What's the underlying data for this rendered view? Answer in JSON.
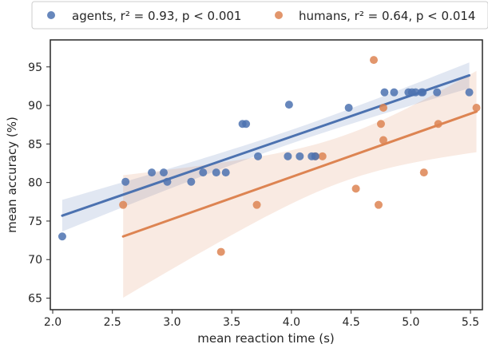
{
  "chart_data": {
    "type": "scatter",
    "xlabel": "mean reaction time (s)",
    "ylabel": "mean accuracy (%)",
    "xlim": [
      1.98,
      5.6
    ],
    "ylim": [
      63.5,
      98.5
    ],
    "xticks": [
      2.0,
      2.5,
      3.0,
      3.5,
      4.0,
      4.5,
      5.0,
      5.5
    ],
    "yticks": [
      65,
      70,
      75,
      80,
      85,
      90,
      95
    ],
    "xtick_labels": [
      "2.0",
      "2.5",
      "3.0",
      "3.5",
      "4.0",
      "4.5",
      "5.0",
      "5.5"
    ],
    "ytick_labels": [
      "65",
      "70",
      "75",
      "80",
      "85",
      "90",
      "95"
    ],
    "grid": false,
    "legend_position": "top, above plot",
    "series": [
      {
        "name": "agents",
        "legend_label": "agents, r² = 0.93, p < 0.001",
        "color": "#4c72b0",
        "points": [
          [
            2.08,
            73.0
          ],
          [
            2.61,
            80.1
          ],
          [
            2.83,
            81.3
          ],
          [
            2.93,
            81.3
          ],
          [
            2.96,
            80.1
          ],
          [
            3.16,
            80.1
          ],
          [
            3.26,
            81.3
          ],
          [
            3.37,
            81.3
          ],
          [
            3.45,
            81.3
          ],
          [
            3.59,
            87.6
          ],
          [
            3.62,
            87.6
          ],
          [
            3.72,
            83.4
          ],
          [
            3.97,
            83.4
          ],
          [
            3.98,
            90.1
          ],
          [
            4.07,
            83.4
          ],
          [
            4.17,
            83.4
          ],
          [
            4.2,
            83.4
          ],
          [
            4.48,
            89.7
          ],
          [
            4.78,
            91.7
          ],
          [
            4.86,
            91.7
          ],
          [
            4.98,
            91.7
          ],
          [
            5.01,
            91.7
          ],
          [
            5.04,
            91.7
          ],
          [
            5.09,
            91.7
          ],
          [
            5.1,
            91.7
          ],
          [
            5.22,
            91.7
          ],
          [
            5.49,
            91.7
          ]
        ],
        "fit": {
          "x": [
            2.08,
            5.49
          ],
          "y": [
            75.7,
            93.9
          ]
        }
      },
      {
        "name": "humans",
        "legend_label": "humans, r² = 0.64, p < 0.014",
        "color": "#dd8452",
        "points": [
          [
            2.59,
            77.1
          ],
          [
            3.41,
            71.0
          ],
          [
            3.71,
            77.1
          ],
          [
            4.2,
            83.4
          ],
          [
            4.26,
            83.4
          ],
          [
            4.54,
            79.2
          ],
          [
            4.69,
            95.9
          ],
          [
            4.73,
            77.1
          ],
          [
            4.75,
            87.6
          ],
          [
            4.77,
            89.7
          ],
          [
            4.77,
            85.5
          ],
          [
            5.11,
            81.3
          ],
          [
            5.23,
            87.6
          ],
          [
            5.55,
            89.7
          ]
        ],
        "fit": {
          "x": [
            2.59,
            5.55
          ],
          "y": [
            73.0,
            89.2
          ]
        }
      }
    ]
  }
}
